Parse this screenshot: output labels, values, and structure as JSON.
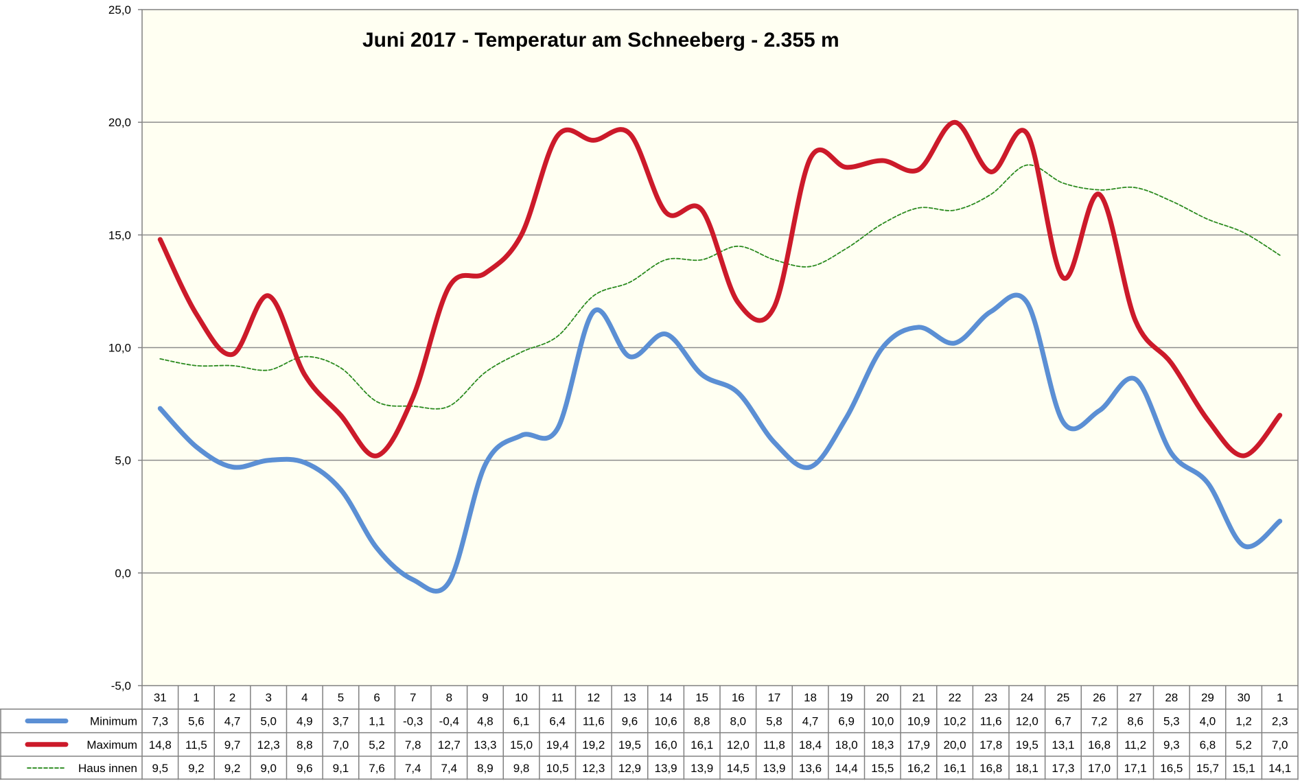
{
  "chart_data": {
    "type": "line",
    "title": "Juni 2017 - Temperatur am Schneeberg - 2.355 m",
    "xlabel": "",
    "ylabel": "",
    "ylim": [
      -5,
      25
    ],
    "yticks": [
      "-5,0",
      "0,0",
      "5,0",
      "10,0",
      "15,0",
      "20,0",
      "25,0"
    ],
    "grid": true,
    "legend": "data-table-left",
    "categories": [
      "31",
      "1",
      "2",
      "3",
      "4",
      "5",
      "6",
      "7",
      "8",
      "9",
      "10",
      "11",
      "12",
      "13",
      "14",
      "15",
      "16",
      "17",
      "18",
      "19",
      "20",
      "21",
      "22",
      "23",
      "24",
      "25",
      "26",
      "27",
      "28",
      "29",
      "30",
      "1"
    ],
    "colors": {
      "min": "#5b8fd4",
      "max": "#cc1a2a",
      "haus": "#2a8a1e",
      "plot_bg": "#fffff2"
    },
    "series": [
      {
        "name": "Minimum",
        "values": [
          7.3,
          5.6,
          4.7,
          5.0,
          4.9,
          3.7,
          1.1,
          -0.3,
          -0.4,
          4.8,
          6.1,
          6.4,
          11.6,
          9.6,
          10.6,
          8.8,
          8.0,
          5.8,
          4.7,
          6.9,
          10.0,
          10.9,
          10.2,
          11.6,
          12.0,
          6.7,
          7.2,
          8.6,
          5.3,
          4.0,
          1.2,
          2.3
        ],
        "labels": [
          "7,3",
          "5,6",
          "4,7",
          "5,0",
          "4,9",
          "3,7",
          "1,1",
          "-0,3",
          "-0,4",
          "4,8",
          "6,1",
          "6,4",
          "11,6",
          "9,6",
          "10,6",
          "8,8",
          "8,0",
          "5,8",
          "4,7",
          "6,9",
          "10,0",
          "10,9",
          "10,2",
          "11,6",
          "12,0",
          "6,7",
          "7,2",
          "8,6",
          "5,3",
          "4,0",
          "1,2",
          "2,3"
        ]
      },
      {
        "name": "Maximum",
        "values": [
          14.8,
          11.5,
          9.7,
          12.3,
          8.8,
          7.0,
          5.2,
          7.8,
          12.7,
          13.3,
          15.0,
          19.4,
          19.2,
          19.5,
          16.0,
          16.1,
          12.0,
          11.8,
          18.4,
          18.0,
          18.3,
          17.9,
          20.0,
          17.8,
          19.5,
          13.1,
          16.8,
          11.2,
          9.3,
          6.8,
          5.2,
          7.0
        ],
        "labels": [
          "14,8",
          "11,5",
          "9,7",
          "12,3",
          "8,8",
          "7,0",
          "5,2",
          "7,8",
          "12,7",
          "13,3",
          "15,0",
          "19,4",
          "19,2",
          "19,5",
          "16,0",
          "16,1",
          "12,0",
          "11,8",
          "18,4",
          "18,0",
          "18,3",
          "17,9",
          "20,0",
          "17,8",
          "19,5",
          "13,1",
          "16,8",
          "11,2",
          "9,3",
          "6,8",
          "5,2",
          "7,0"
        ]
      },
      {
        "name": "Haus innen",
        "values": [
          9.5,
          9.2,
          9.2,
          9.0,
          9.6,
          9.1,
          7.6,
          7.4,
          7.4,
          8.9,
          9.8,
          10.5,
          12.3,
          12.9,
          13.9,
          13.9,
          14.5,
          13.9,
          13.6,
          14.4,
          15.5,
          16.2,
          16.1,
          16.8,
          18.1,
          17.3,
          17.0,
          17.1,
          16.5,
          15.7,
          15.1,
          14.1
        ],
        "labels": [
          "9,5",
          "9,2",
          "9,2",
          "9,0",
          "9,6",
          "9,1",
          "7,6",
          "7,4",
          "7,4",
          "8,9",
          "9,8",
          "10,5",
          "12,3",
          "12,9",
          "13,9",
          "13,9",
          "14,5",
          "13,9",
          "13,6",
          "14,4",
          "15,5",
          "16,2",
          "16,1",
          "16,8",
          "18,1",
          "17,3",
          "17,0",
          "17,1",
          "16,5",
          "15,7",
          "15,1",
          "14,1"
        ]
      }
    ]
  }
}
